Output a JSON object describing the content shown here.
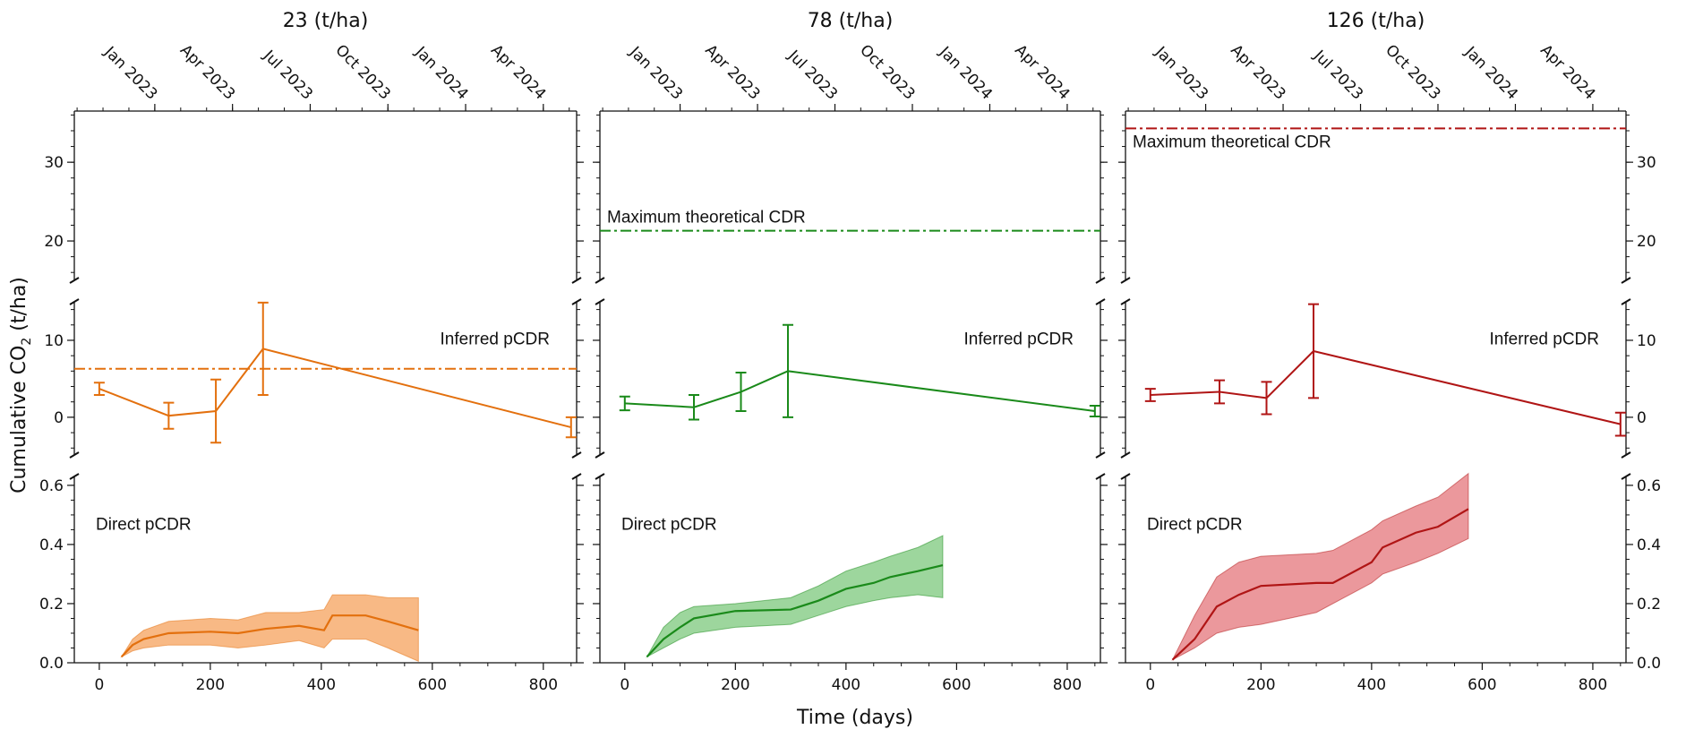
{
  "chart_data": {
    "type": "line",
    "xlabel": "Time (days)",
    "ylabel": "Cumulative CO2 (t/ha)",
    "ylabel_main": "Cumulative CO",
    "ylabel_sub": "2",
    "ylabel_tail": " (t/ha)",
    "xlim": [
      -45,
      860
    ],
    "xticks": [
      0,
      200,
      400,
      600,
      800
    ],
    "top_axis_labels": [
      {
        "label": "Jan 2023",
        "day": 100
      },
      {
        "label": "Apr 2023",
        "day": 240
      },
      {
        "label": "Jul 2023",
        "day": 380
      },
      {
        "label": "Oct 2023",
        "day": 520
      },
      {
        "label": "Jan 2024",
        "day": 660
      },
      {
        "label": "Apr 2024",
        "day": 800
      }
    ],
    "segments": {
      "top": {
        "ylim": [
          15,
          36.5
        ],
        "ticks": [
          20,
          30
        ]
      },
      "middle": {
        "ylim": [
          -4.9,
          15
        ],
        "ticks": [
          0,
          10
        ]
      },
      "bottom": {
        "ylim": [
          0,
          0.63
        ],
        "ticks": [
          0.0,
          0.2,
          0.4,
          0.6
        ],
        "tick_labels": [
          "0.0",
          "0.2",
          "0.4",
          "0.6"
        ]
      }
    },
    "annotations": {
      "inferred": "Inferred pCDR",
      "direct": "Direct pCDR",
      "max": "Maximum theoretical CDR"
    },
    "panels": [
      {
        "title": "23 (t/ha)",
        "color": "#e3700e",
        "fill": "#f7ad70",
        "max_cdr": null,
        "inferred_line": 6.3,
        "inferred": {
          "x": [
            0,
            125,
            210,
            295,
            850
          ],
          "y": [
            3.7,
            0.2,
            0.8,
            8.9,
            -1.3
          ],
          "err": [
            0.8,
            1.7,
            4.1,
            6.0,
            1.3
          ]
        },
        "direct": {
          "x": [
            40,
            60,
            80,
            125,
            200,
            250,
            300,
            360,
            405,
            420,
            480,
            520,
            575
          ],
          "mean": [
            0.02,
            0.06,
            0.08,
            0.1,
            0.105,
            0.1,
            0.115,
            0.125,
            0.11,
            0.16,
            0.16,
            0.14,
            0.11
          ],
          "low": [
            0.02,
            0.04,
            0.05,
            0.06,
            0.06,
            0.05,
            0.06,
            0.075,
            0.05,
            0.08,
            0.08,
            0.05,
            0.005
          ],
          "high": [
            0.02,
            0.08,
            0.11,
            0.14,
            0.15,
            0.145,
            0.17,
            0.17,
            0.18,
            0.23,
            0.23,
            0.22,
            0.22
          ]
        }
      },
      {
        "title": "78 (t/ha)",
        "color": "#1a8a1a",
        "fill": "#8ccf8c",
        "max_cdr": 21.3,
        "inferred_line": null,
        "inferred": {
          "x": [
            0,
            125,
            210,
            295,
            850
          ],
          "y": [
            1.8,
            1.3,
            3.3,
            6.0,
            0.8
          ],
          "err": [
            0.9,
            1.6,
            2.5,
            6.0,
            0.7
          ]
        },
        "direct": {
          "x": [
            40,
            70,
            100,
            125,
            200,
            300,
            350,
            400,
            450,
            480,
            530,
            575
          ],
          "mean": [
            0.02,
            0.08,
            0.12,
            0.15,
            0.175,
            0.18,
            0.21,
            0.25,
            0.27,
            0.29,
            0.31,
            0.33
          ],
          "low": [
            0.02,
            0.05,
            0.08,
            0.1,
            0.12,
            0.13,
            0.16,
            0.19,
            0.21,
            0.22,
            0.23,
            0.22
          ],
          "high": [
            0.02,
            0.12,
            0.17,
            0.19,
            0.2,
            0.22,
            0.26,
            0.31,
            0.34,
            0.36,
            0.39,
            0.43
          ]
        }
      },
      {
        "title": "126 (t/ha)",
        "color": "#b01515",
        "fill": "#e8868b",
        "max_cdr": 34.3,
        "inferred_line": null,
        "inferred": {
          "x": [
            0,
            125,
            210,
            295,
            850
          ],
          "y": [
            2.9,
            3.3,
            2.5,
            8.6,
            -0.9
          ],
          "err": [
            0.8,
            1.5,
            2.1,
            6.1,
            1.5
          ]
        },
        "direct": {
          "x": [
            40,
            80,
            120,
            160,
            200,
            300,
            330,
            400,
            420,
            480,
            520,
            575
          ],
          "mean": [
            0.01,
            0.08,
            0.19,
            0.23,
            0.26,
            0.27,
            0.27,
            0.34,
            0.39,
            0.44,
            0.46,
            0.52
          ],
          "low": [
            0.01,
            0.05,
            0.1,
            0.12,
            0.13,
            0.17,
            0.2,
            0.27,
            0.3,
            0.34,
            0.37,
            0.42
          ],
          "high": [
            0.01,
            0.16,
            0.29,
            0.34,
            0.36,
            0.37,
            0.38,
            0.45,
            0.48,
            0.53,
            0.56,
            0.64
          ]
        }
      }
    ]
  }
}
